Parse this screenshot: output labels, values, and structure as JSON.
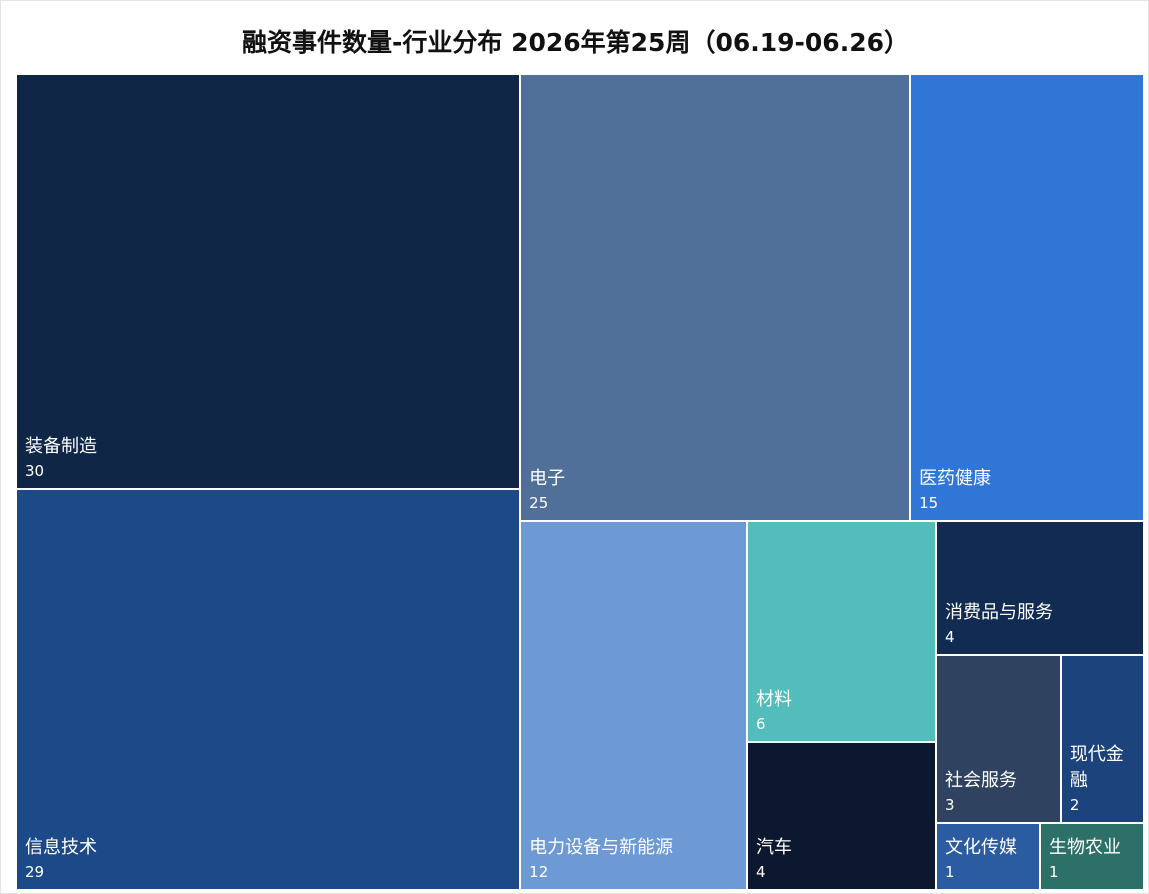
{
  "chart_data": {
    "type": "treemap",
    "title": "融资事件数量-行业分布 2026年第25周（06.19-06.26）",
    "categories": [
      "装备制造",
      "信息技术",
      "电子",
      "医药健康",
      "电力设备与新能源",
      "材料",
      "汽车",
      "消费品与服务",
      "社会服务",
      "现代金融",
      "文化传媒",
      "生物农业"
    ],
    "values": [
      30,
      29,
      25,
      15,
      12,
      6,
      4,
      4,
      3,
      2,
      1,
      1
    ],
    "colors": [
      "#0f2647",
      "#1c4987",
      "#507099",
      "#2f76d6",
      "#6d9ad4",
      "#53bdbb",
      "#0b1830",
      "#122b52",
      "#2f4360",
      "#1c437c",
      "#2b5ba0",
      "#2d7068"
    ]
  }
}
